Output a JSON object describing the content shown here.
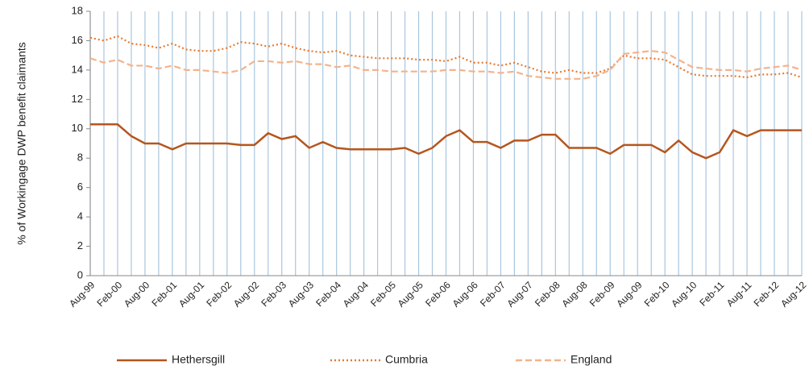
{
  "chart_data": {
    "type": "line",
    "y_label": "% of Workingage DWP benefit claimants",
    "categories": [
      "Aug-99",
      null,
      "Feb-00",
      null,
      "Aug-00",
      null,
      "Feb-01",
      null,
      "Aug-01",
      null,
      "Feb-02",
      null,
      "Aug-02",
      null,
      "Feb-03",
      null,
      "Aug-03",
      null,
      "Feb-04",
      null,
      "Aug-04",
      null,
      "Feb-05",
      null,
      "Aug-05",
      null,
      "Feb-06",
      null,
      "Aug-06",
      null,
      "Feb-07",
      null,
      "Aug-07",
      null,
      "Feb-08",
      null,
      "Aug-08",
      null,
      "Feb-09",
      null,
      "Aug-09",
      null,
      "Feb-10",
      null,
      "Aug-10",
      null,
      "Feb-11",
      null,
      "Aug-11",
      null,
      "Feb-12",
      null,
      "Aug-12"
    ],
    "series": [
      {
        "name": "Hethersgill",
        "color": "#b5561e",
        "dash": "solid",
        "values": [
          10.3,
          10.3,
          10.3,
          9.5,
          9.0,
          9.0,
          8.6,
          9.0,
          9.0,
          9.0,
          9.0,
          8.9,
          8.9,
          9.7,
          9.3,
          9.5,
          8.7,
          9.1,
          8.7,
          8.6,
          8.6,
          8.6,
          8.6,
          8.7,
          8.3,
          8.7,
          9.5,
          9.9,
          9.1,
          9.1,
          8.7,
          9.2,
          9.2,
          9.6,
          9.6,
          8.7,
          8.7,
          8.7,
          8.3,
          8.9,
          8.9,
          8.9,
          8.4,
          9.2,
          8.4,
          8.0,
          8.4,
          9.9,
          9.5,
          9.9,
          9.9,
          9.9,
          9.9
        ]
      },
      {
        "name": "Cumbria",
        "color": "#e9792f",
        "dash": "dotted",
        "values": [
          16.2,
          16.0,
          16.3,
          15.8,
          15.7,
          15.5,
          15.8,
          15.4,
          15.3,
          15.3,
          15.5,
          15.9,
          15.8,
          15.6,
          15.8,
          15.5,
          15.3,
          15.2,
          15.3,
          15.0,
          14.9,
          14.8,
          14.8,
          14.8,
          14.7,
          14.7,
          14.6,
          14.9,
          14.5,
          14.5,
          14.3,
          14.5,
          14.2,
          13.9,
          13.8,
          14.0,
          13.8,
          13.8,
          14.1,
          15.0,
          14.8,
          14.8,
          14.7,
          14.2,
          13.7,
          13.6,
          13.6,
          13.6,
          13.5,
          13.7,
          13.7,
          13.8,
          13.5
        ]
      },
      {
        "name": "England",
        "color": "#f5b28a",
        "dash": "dashed",
        "values": [
          14.8,
          14.5,
          14.7,
          14.3,
          14.3,
          14.1,
          14.3,
          14.0,
          14.0,
          13.9,
          13.8,
          14.0,
          14.6,
          14.6,
          14.5,
          14.6,
          14.4,
          14.4,
          14.2,
          14.3,
          14.0,
          14.0,
          13.9,
          13.9,
          13.9,
          13.9,
          14.0,
          14.0,
          13.9,
          13.9,
          13.8,
          13.9,
          13.6,
          13.5,
          13.4,
          13.4,
          13.4,
          13.6,
          14.0,
          15.1,
          15.2,
          15.3,
          15.2,
          14.7,
          14.2,
          14.1,
          14.0,
          14.0,
          13.9,
          14.1,
          14.2,
          14.3,
          14.0
        ]
      }
    ],
    "ylim": [
      0,
      18
    ],
    "yticks": [
      0,
      2,
      4,
      6,
      8,
      10,
      12,
      14,
      16,
      18
    ],
    "grid": true,
    "grid_color": "#a9c6de",
    "legend": "bottom"
  }
}
